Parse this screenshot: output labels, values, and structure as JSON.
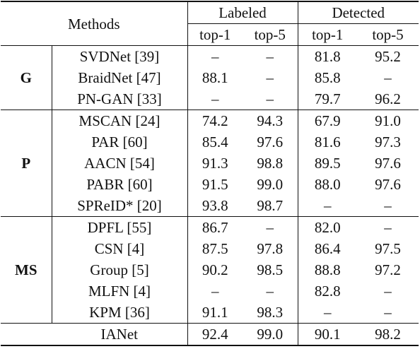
{
  "header": {
    "methods": "Methods",
    "labeled": "Labeled",
    "detected": "Detected",
    "top1": "top-1",
    "top5": "top-5"
  },
  "groups": [
    {
      "label": "G",
      "rows": [
        {
          "method": "SVDNet [39]",
          "l1": "–",
          "l5": "–",
          "d1": "81.8",
          "d5": "95.2"
        },
        {
          "method": "BraidNet [47]",
          "l1": "88.1",
          "l5": "–",
          "d1": "85.8",
          "d5": "–"
        },
        {
          "method": "PN-GAN [33]",
          "l1": "–",
          "l5": "–",
          "d1": "79.7",
          "d5": "96.2"
        }
      ]
    },
    {
      "label": "P",
      "rows": [
        {
          "method": "MSCAN [24]",
          "l1": "74.2",
          "l5": "94.3",
          "d1": "67.9",
          "d5": "91.0"
        },
        {
          "method": "PAR [60]",
          "l1": "85.4",
          "l5": "97.6",
          "d1": "81.6",
          "d5": "97.3"
        },
        {
          "method": "AACN [54]",
          "l1": "91.3",
          "l5": "98.8",
          "d1": "89.5",
          "d5": "97.6"
        },
        {
          "method": "PABR [60]",
          "l1": "91.5",
          "l5": "99.0",
          "d1": "88.0",
          "d5": "97.6"
        },
        {
          "method": "SPReID* [20]",
          "l1": "93.8",
          "l5": "98.7",
          "d1": "–",
          "d5": "–"
        }
      ]
    },
    {
      "label": "MS",
      "rows": [
        {
          "method": "DPFL [55]",
          "l1": "86.7",
          "l5": "–",
          "d1": "82.0",
          "d5": "–"
        },
        {
          "method": "CSN [4]",
          "l1": "87.5",
          "l5": "97.8",
          "d1": "86.4",
          "d5": "97.5"
        },
        {
          "method": "Group [5]",
          "l1": "90.2",
          "l5": "98.5",
          "d1": "88.8",
          "d5": "97.2"
        },
        {
          "method": "MLFN [4]",
          "l1": "–",
          "l5": "–",
          "d1": "82.8",
          "d5": "–"
        },
        {
          "method": "KPM [36]",
          "l1": "91.1",
          "l5": "98.3",
          "d1": "–",
          "d5": "–"
        }
      ]
    }
  ],
  "final": {
    "method": "IANet",
    "l1": "92.4",
    "l5": "99.0",
    "d1": "90.1",
    "d5": "98.2"
  }
}
